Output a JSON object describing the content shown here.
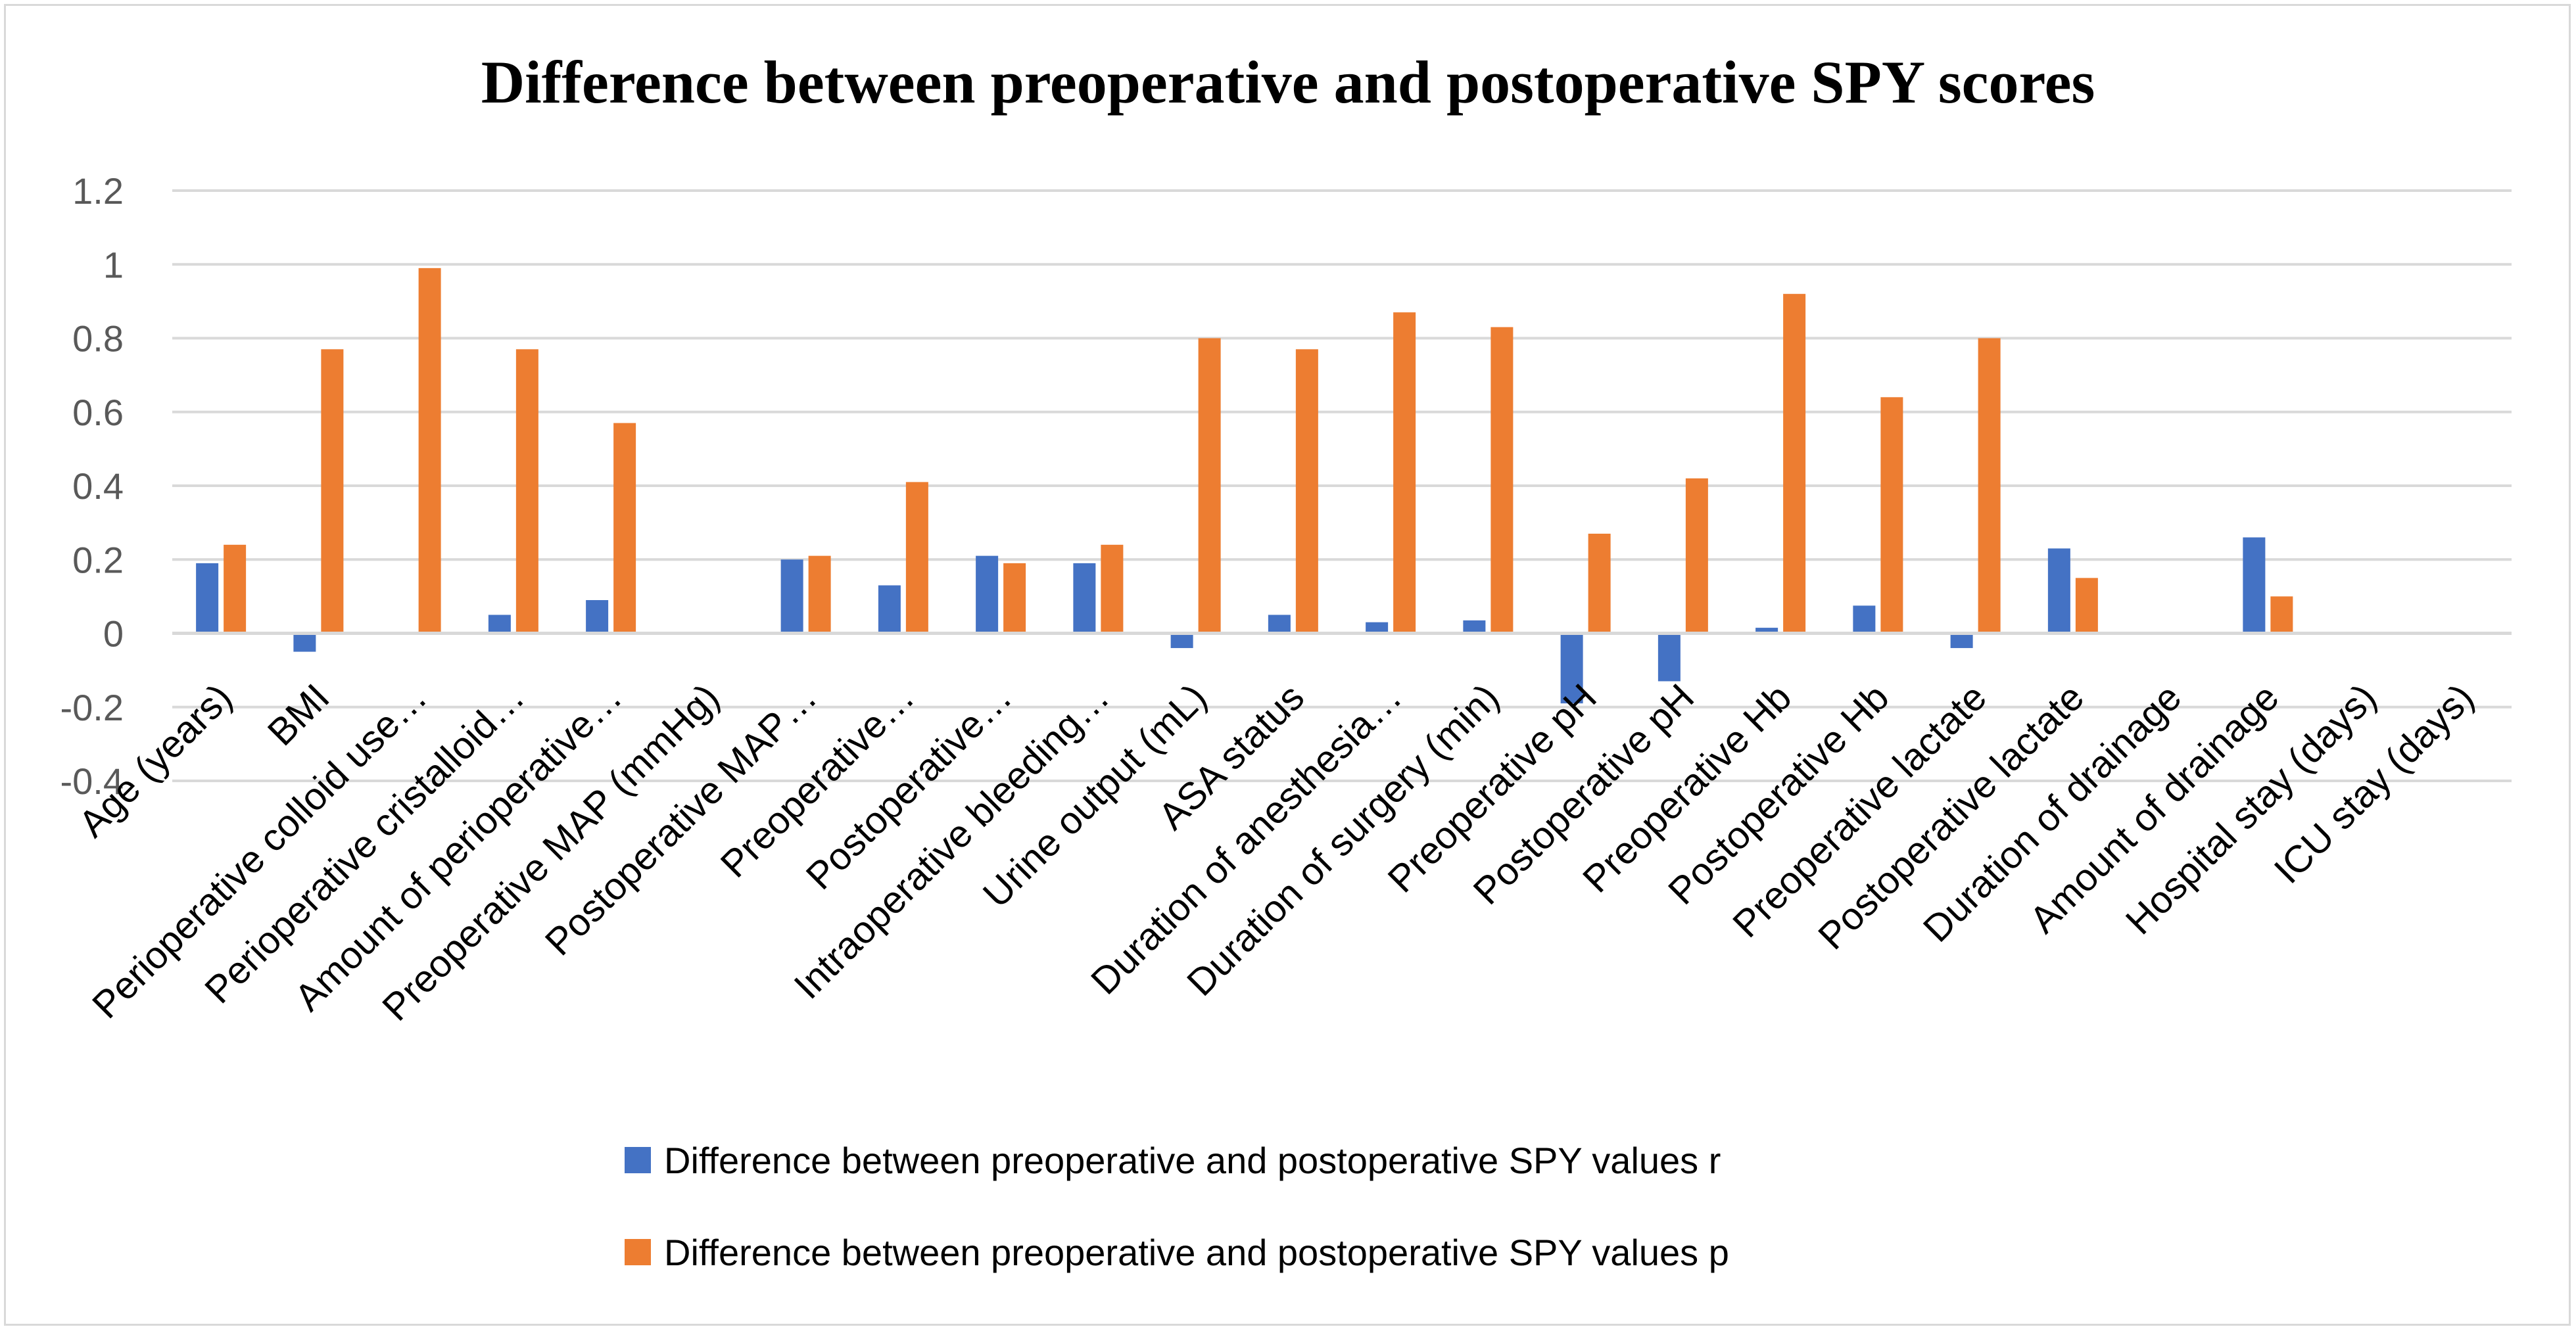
{
  "chart_data": {
    "type": "bar",
    "title": "Difference between preoperative and postoperative SPY scores",
    "xlabel": "",
    "ylabel": "",
    "ylim": [
      -0.4,
      1.2
    ],
    "yticks": [
      "-0.4",
      "-0.2",
      "0",
      "0.2",
      "0.4",
      "0.6",
      "0.8",
      "1",
      "1.2"
    ],
    "ytick_values": [
      -0.4,
      -0.2,
      0,
      0.2,
      0.4,
      0.6,
      0.8,
      1,
      1.2
    ],
    "grid": true,
    "legend_position": "bottom",
    "categories": [
      "Age (years)",
      "BMI",
      "Perioperative colloid use…",
      "Perioperative cristalloid…",
      "Amount of perioperative…",
      "Preoperative MAP (mmHg)",
      "Postoperative MAP…",
      "Preoperative…",
      "Postoperative…",
      "Intraoperative bleeding…",
      "Urine output (mL)",
      "ASA status",
      "Duration of anesthesia…",
      "Duration of surgery (min)",
      "Preoperative pH",
      "Postoperative pH",
      "Preoperative Hb",
      "Postoperative Hb",
      "Preoperative lactate",
      "Postoperative lactate",
      "Duration of drainage",
      "Amount of drainage",
      "Hospital stay (days)",
      "ICU stay (days)"
    ],
    "series": [
      {
        "name": "Difference between preoperative and postoperative SPY values r",
        "color": "#4472c4",
        "values": [
          0.19,
          -0.05,
          0,
          0.05,
          0.09,
          0,
          0.2,
          0.13,
          0.21,
          0.19,
          -0.04,
          0.05,
          0.03,
          0.035,
          -0.19,
          -0.13,
          0.015,
          0.075,
          -0.04,
          0.23,
          0,
          0.26,
          0,
          0
        ]
      },
      {
        "name": "Difference between preoperative and postoperative SPY values p",
        "color": "#ed7d31",
        "values": [
          0.24,
          0.77,
          0.99,
          0.77,
          0.57,
          0,
          0.21,
          0.41,
          0.19,
          0.24,
          0.8,
          0.77,
          0.87,
          0.83,
          0.27,
          0.42,
          0.92,
          0.64,
          0.8,
          0.15,
          0,
          0.1,
          0,
          0
        ]
      }
    ]
  }
}
